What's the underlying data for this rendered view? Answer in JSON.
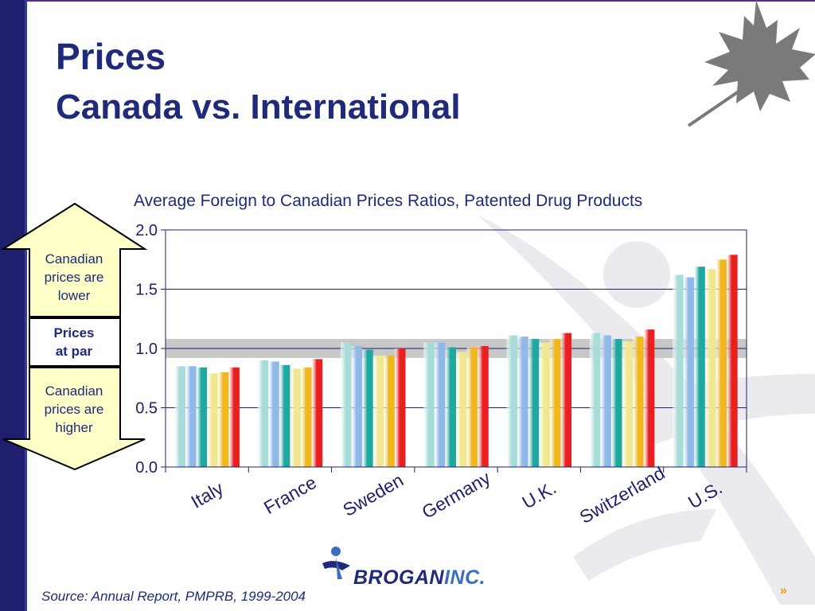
{
  "slide": {
    "title": "Prices",
    "subtitle": "Canada vs. International",
    "source": "Source: Annual Report, PMPRB, 1999-2004",
    "next_glyph": "»",
    "logo": {
      "name": "BROGAN",
      "suffix": "INC."
    },
    "arrow_labels": {
      "lower": [
        "Canadian",
        "prices are",
        "lower"
      ],
      "par": [
        "Prices",
        "at par"
      ],
      "higher": [
        "Canadian",
        "prices are",
        "higher"
      ]
    },
    "colors": {
      "sidebar": "#1f1f6e",
      "title": "#1f2a7a",
      "arrow_fill": "#ffffc8",
      "par_band": "#c8c8c8"
    }
  },
  "chart_data": {
    "type": "bar",
    "title": "Average Foreign to Canadian Prices Ratios, Patented Drug Products",
    "categories": [
      "Italy",
      "France",
      "Sweden",
      "Germany",
      "U.K.",
      "Switzerland",
      "U.S."
    ],
    "series": [
      {
        "color": "#a8dcd8",
        "values": [
          0.85,
          0.9,
          1.05,
          1.05,
          1.11,
          1.13,
          1.62
        ]
      },
      {
        "color": "#90b8e8",
        "values": [
          0.85,
          0.89,
          1.02,
          1.05,
          1.1,
          1.11,
          1.6
        ]
      },
      {
        "color": "#20a8a0",
        "values": [
          0.84,
          0.86,
          0.99,
          1.01,
          1.08,
          1.08,
          1.69
        ]
      },
      {
        "color": "#f0e890",
        "values": [
          0.79,
          0.83,
          0.94,
          0.97,
          1.05,
          1.06,
          1.67
        ]
      },
      {
        "color": "#f0b820",
        "values": [
          0.8,
          0.84,
          0.94,
          1.01,
          1.08,
          1.1,
          1.75
        ]
      },
      {
        "color": "#e82020",
        "values": [
          0.84,
          0.91,
          1.0,
          1.02,
          1.13,
          1.16,
          1.79
        ]
      }
    ],
    "ylim": [
      0,
      2.0
    ],
    "yticks": [
      "0.0",
      "0.5",
      "1.0",
      "1.5",
      "2.0"
    ],
    "par_band": [
      0.92,
      1.08
    ],
    "grid": true,
    "legend": "none"
  }
}
